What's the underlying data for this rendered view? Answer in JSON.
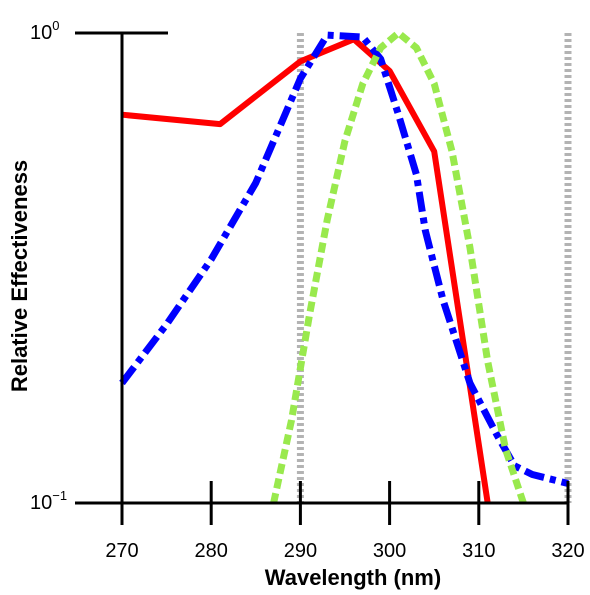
{
  "chart_data": {
    "type": "line",
    "title": "",
    "xlabel": "Wavelength (nm)",
    "ylabel": "Relative Effectiveness",
    "xlim": [
      270,
      320
    ],
    "ylim": [
      0.1,
      1
    ],
    "yscale": "log",
    "x_ticks": [
      270,
      280,
      290,
      300,
      310,
      320
    ],
    "y_ticks": [
      {
        "value": 1,
        "base": "10",
        "exp": "0"
      },
      {
        "value": 0.1,
        "base": "10",
        "exp": "−1"
      }
    ],
    "grid": false,
    "legend": "none",
    "vertical_reference_lines": [
      {
        "x": 290,
        "color": "#b3b3b3",
        "style": "dotted"
      },
      {
        "x": 320,
        "color": "#b3b3b3",
        "style": "dotted"
      }
    ],
    "series": [
      {
        "color": "#ff0000",
        "style": "solid",
        "x": [
          270,
          281,
          290,
          296,
          300,
          305,
          311
        ],
        "y": [
          0.67,
          0.64,
          0.87,
          0.97,
          0.83,
          0.56,
          0.1
        ]
      },
      {
        "color": "#0000ff",
        "style": "dashdot",
        "x": [
          270,
          275,
          280,
          285,
          290,
          293,
          297,
          299,
          301,
          303,
          304,
          306,
          309,
          312,
          314,
          316,
          320
        ],
        "y": [
          0.18,
          0.24,
          0.33,
          0.48,
          0.8,
          0.99,
          0.98,
          0.88,
          0.67,
          0.5,
          0.38,
          0.27,
          0.18,
          0.14,
          0.12,
          0.115,
          0.11
        ]
      },
      {
        "color": "#99e94d",
        "style": "dashed",
        "x": [
          287,
          289,
          291,
          293,
          295,
          297,
          299,
          301,
          303,
          305,
          307,
          309,
          311,
          313,
          315
        ],
        "y": [
          0.1,
          0.15,
          0.25,
          0.4,
          0.59,
          0.78,
          0.93,
          1.0,
          0.93,
          0.78,
          0.56,
          0.35,
          0.2,
          0.13,
          0.1
        ]
      }
    ]
  }
}
